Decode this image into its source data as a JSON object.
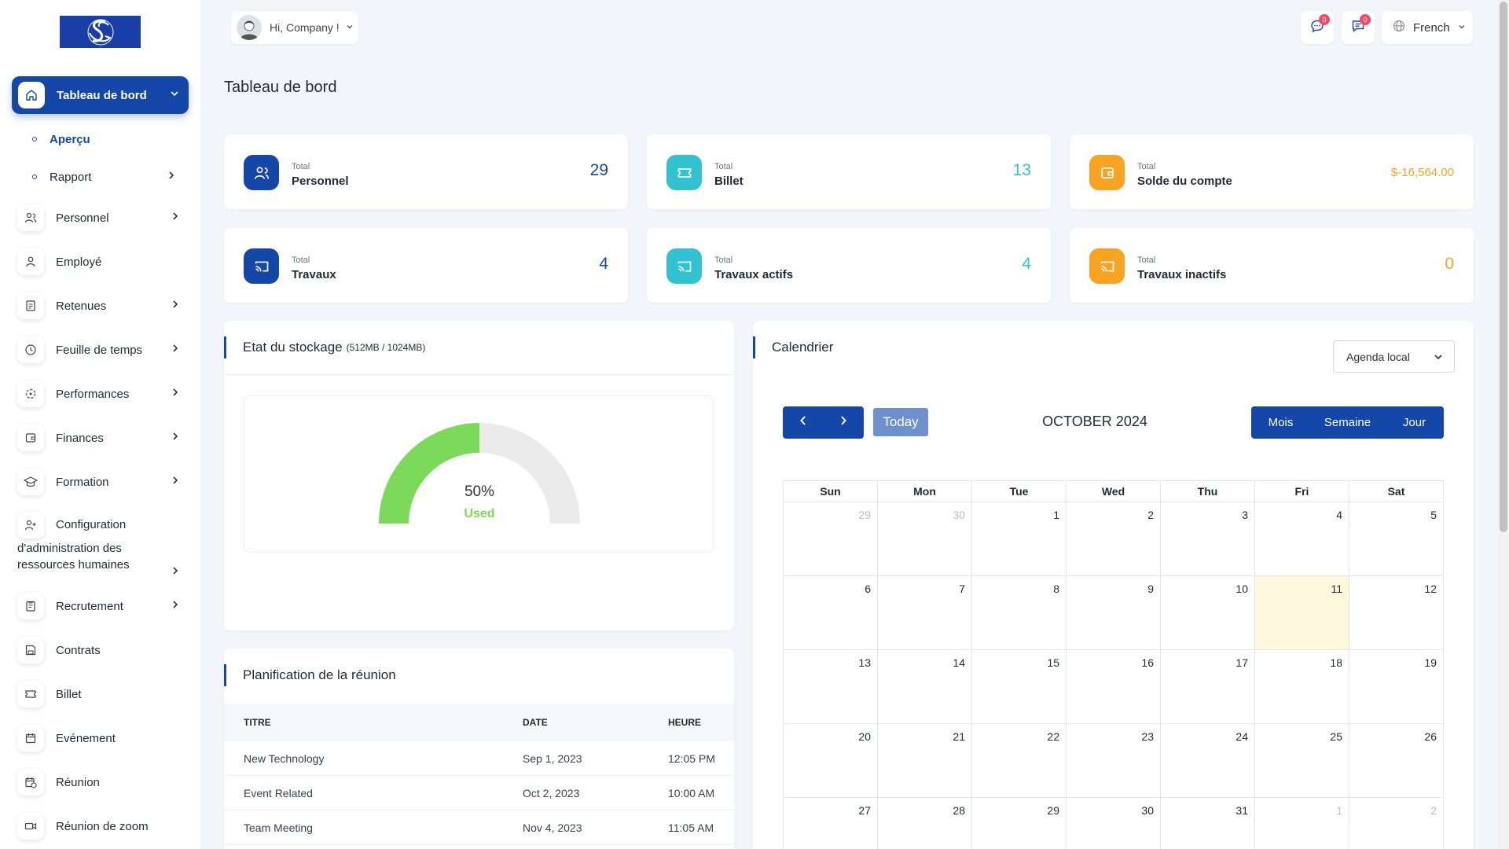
{
  "sidebar": {
    "items": [
      {
        "label": "Tableau de bord",
        "icon": "home-icon",
        "active": true
      },
      {
        "label": "Aperçu",
        "sub": true,
        "current": true
      },
      {
        "label": "Rapport",
        "sub": true
      },
      {
        "label": "Personnel",
        "icon": "users-icon"
      },
      {
        "label": "Employé",
        "icon": "user-icon"
      },
      {
        "label": "Retenues",
        "icon": "document-icon"
      },
      {
        "label": "Feuille de temps",
        "icon": "clock-icon"
      },
      {
        "label": "Performances",
        "icon": "target-icon"
      },
      {
        "label": "Finances",
        "icon": "wallet-icon"
      },
      {
        "label": "Formation",
        "icon": "graduation-cap-icon"
      },
      {
        "label_line1": "Configuration",
        "label_line2": "d'administration des ressources humaines",
        "icon": "user-plus-icon"
      },
      {
        "label": "Recrutement",
        "icon": "clipboard-icon"
      },
      {
        "label": "Contrats",
        "icon": "floppy-icon"
      },
      {
        "label": "Billet",
        "icon": "ticket-icon"
      },
      {
        "label": "Evénement",
        "icon": "calendar-icon"
      },
      {
        "label": "Réunion",
        "icon": "calendar-clock-icon"
      },
      {
        "label": "Réunion de zoom",
        "icon": "video-icon"
      }
    ]
  },
  "header": {
    "greeting": "Hi, Company !",
    "messages_badge": "0",
    "notifications_badge": "0",
    "language": "French"
  },
  "page_title": "Tableau de bord",
  "stats": [
    {
      "small": "Total",
      "name": "Personnel",
      "value": "29",
      "color": "#1447a8",
      "icon": "users-icon"
    },
    {
      "small": "Total",
      "name": "Billet",
      "value": "13",
      "color": "#33c3d0",
      "icon": "ticket-icon"
    },
    {
      "small": "Total",
      "name": "Solde du compte",
      "value": "$-16,564.00",
      "color": "#f7a324",
      "icon": "wallet-icon"
    },
    {
      "small": "Total",
      "name": "Travaux",
      "value": "4",
      "color": "#1447a8",
      "icon": "cast-icon"
    },
    {
      "small": "Total",
      "name": "Travaux actifs",
      "value": "4",
      "color": "#33c3d0",
      "icon": "cast-icon"
    },
    {
      "small": "Total",
      "name": "Travaux inactifs",
      "value": "0",
      "color": "#f7a324",
      "icon": "cast-icon"
    }
  ],
  "storage": {
    "title": "Etat du stockage",
    "detail": "(512MB / 1024MB)",
    "percent_label": "50%",
    "used_label": "Used",
    "used_fraction": 0.5,
    "used_color": "#7dd95a"
  },
  "meetings": {
    "title": "Planification de la réunion",
    "headers": [
      "TITRE",
      "DATE",
      "HEURE"
    ],
    "rows": [
      [
        "New Technology",
        "Sep 1, 2023",
        "12:05 PM"
      ],
      [
        "Event Related",
        "Oct 2, 2023",
        "10:00 AM"
      ],
      [
        "Team Meeting",
        "Nov 4, 2023",
        "11:05 AM"
      ]
    ]
  },
  "calendar": {
    "title": "Calendrier",
    "agenda": "Agenda local",
    "today_label": "Today",
    "month_label": "OCTOBER 2024",
    "views": [
      "Mois",
      "Semaine",
      "Jour"
    ],
    "weekdays": [
      "Sun",
      "Mon",
      "Tue",
      "Wed",
      "Thu",
      "Fri",
      "Sat"
    ],
    "weeks": [
      [
        "29",
        "30",
        "1",
        "2",
        "3",
        "4",
        "5"
      ],
      [
        "6",
        "7",
        "8",
        "9",
        "10",
        "11",
        "12"
      ],
      [
        "13",
        "14",
        "15",
        "16",
        "17",
        "18",
        "19"
      ],
      [
        "20",
        "21",
        "22",
        "23",
        "24",
        "25",
        "26"
      ],
      [
        "27",
        "28",
        "29",
        "30",
        "31",
        "1",
        "2"
      ]
    ]
  }
}
